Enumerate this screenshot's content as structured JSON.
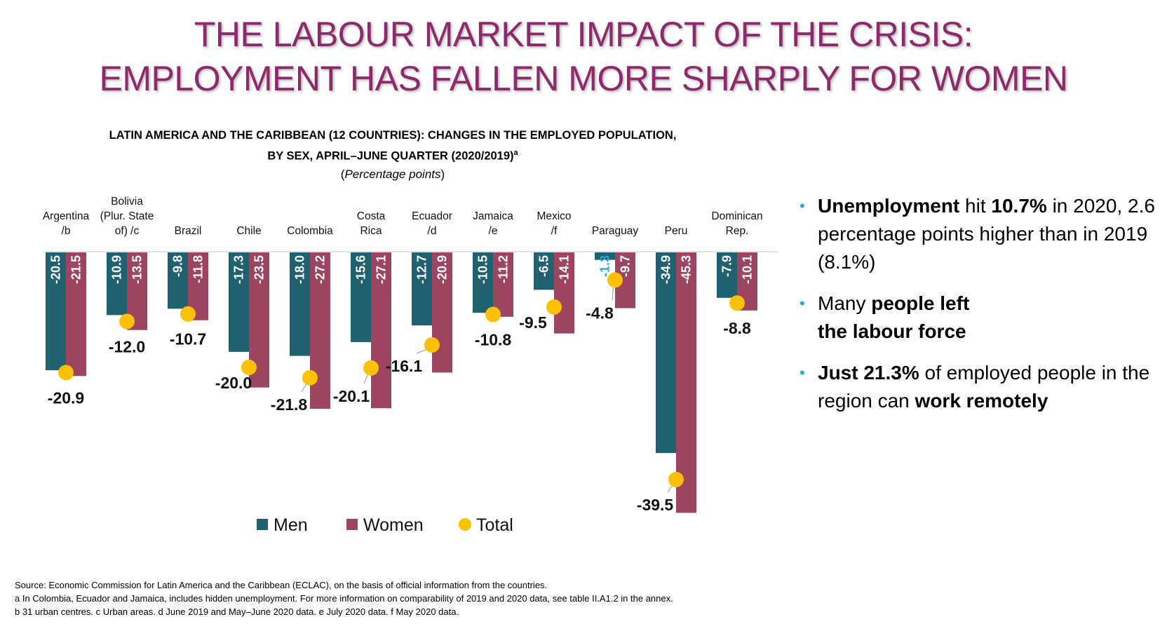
{
  "slide": {
    "title_line1": "THE LABOUR MARKET IMPACT OF THE CRISIS:",
    "title_line2": "EMPLOYMENT HAS FALLEN MORE SHARPLY FOR WOMEN"
  },
  "chart_header": {
    "line1": "LATIN AMERICA AND THE CARIBBEAN (12 COUNTRIES): CHANGES IN THE EMPLOYED POPULATION,",
    "line2": "BY SEX, APRIL–JUNE QUARTER (2020/2019)",
    "line2_sup": "a",
    "unit_open": "(",
    "unit": "Percentage points",
    "unit_close": ")"
  },
  "chart_data": {
    "type": "bar",
    "title": "LATIN AMERICA AND THE CARIBBEAN (12 COUNTRIES): CHANGES IN THE EMPLOYED POPULATION, BY SEX, APRIL–JUNE QUARTER (2020/2019)",
    "unit": "Percentage points",
    "categories": [
      [
        "Argentina",
        "/b"
      ],
      [
        "Bolivia",
        "(Plur. State",
        "of) /c"
      ],
      [
        "Brazil"
      ],
      [
        "Chile"
      ],
      [
        "Colombia"
      ],
      [
        "Costa",
        "Rica"
      ],
      [
        "Ecuador",
        "/d"
      ],
      [
        "Jamaica",
        "/e"
      ],
      [
        "Mexico",
        "/f"
      ],
      [
        "Paraguay"
      ],
      [
        "Peru"
      ],
      [
        "Dominican",
        "Rep."
      ]
    ],
    "series": [
      {
        "name": "Men",
        "type": "bar",
        "color": "#1f616e",
        "values": [
          -20.5,
          -10.9,
          -9.8,
          -17.3,
          -18.0,
          -15.6,
          -12.7,
          -10.5,
          -6.5,
          -1.3,
          -34.9,
          -7.9
        ],
        "labels": [
          "-20.5",
          "-10.9",
          "-9.8",
          "-17.3",
          "-18.0",
          "-15.6",
          "-12.7",
          "-10.5",
          "-6.5",
          "-1.3",
          "-34.9",
          "-7.9"
        ]
      },
      {
        "name": "Women",
        "type": "bar",
        "color": "#9c4460",
        "values": [
          -21.5,
          -13.5,
          -11.8,
          -23.5,
          -27.2,
          -27.1,
          -20.9,
          -11.2,
          -14.1,
          -9.7,
          -45.3,
          -10.1
        ],
        "labels": [
          "-21.5",
          "-13.5",
          "-11.8",
          "-23.5",
          "-27.2",
          "-27.1",
          "-20.9",
          "-11.2",
          "-14.1",
          "-9.7",
          "-45.3",
          "-10.1"
        ]
      },
      {
        "name": "Total",
        "type": "point",
        "color": "#ffc000",
        "values": [
          -20.9,
          -12.0,
          -10.7,
          -20.0,
          -21.8,
          -20.1,
          -16.1,
          -10.8,
          -9.5,
          -4.8,
          -39.5,
          -8.8
        ],
        "labels": [
          "-20.9",
          "-12.0",
          "-10.7",
          "-20.0",
          "-21.8",
          "-20.1",
          "-16.1",
          "-10.8",
          "-9.5",
          "-4.8",
          "-39.5",
          "-8.8"
        ]
      }
    ],
    "ylim": [
      -46,
      0
    ],
    "legend": "bottom"
  },
  "bullets": [
    [
      {
        "t": "Unemployment",
        "b": true
      },
      {
        "t": " hit ",
        "b": false
      },
      {
        "t": "10.7%",
        "b": true
      },
      {
        "t": " in 2020, 2.6 percentage points higher than in 2019 (8.1%)",
        "b": false
      }
    ],
    [
      {
        "t": "Many ",
        "b": false
      },
      {
        "t": "people left",
        "b": true
      },
      {
        "t": "\n",
        "b": false
      },
      {
        "t": "the labour force",
        "b": true
      }
    ],
    [
      {
        "t": "Just 21.3%",
        "b": true
      },
      {
        "t": " of employed people in the region can ",
        "b": false
      },
      {
        "t": "work remotely",
        "b": true
      }
    ]
  ],
  "bullet_marker": "•",
  "notes": {
    "source": "Source: Economic Commission for Latin America and the Caribbean (ECLAC), on the basis of official information from the countries.",
    "note_a": "a In Colombia, Ecuador and Jamaica, includes hidden unemployment. For more information on comparability of 2019 and 2020 data, see table II.A1.2 in the annex.",
    "note_b": "b 31 urban centres. c Urban areas. d June 2019 and May–June 2020 data. e July 2020 data. f May 2020 data."
  }
}
